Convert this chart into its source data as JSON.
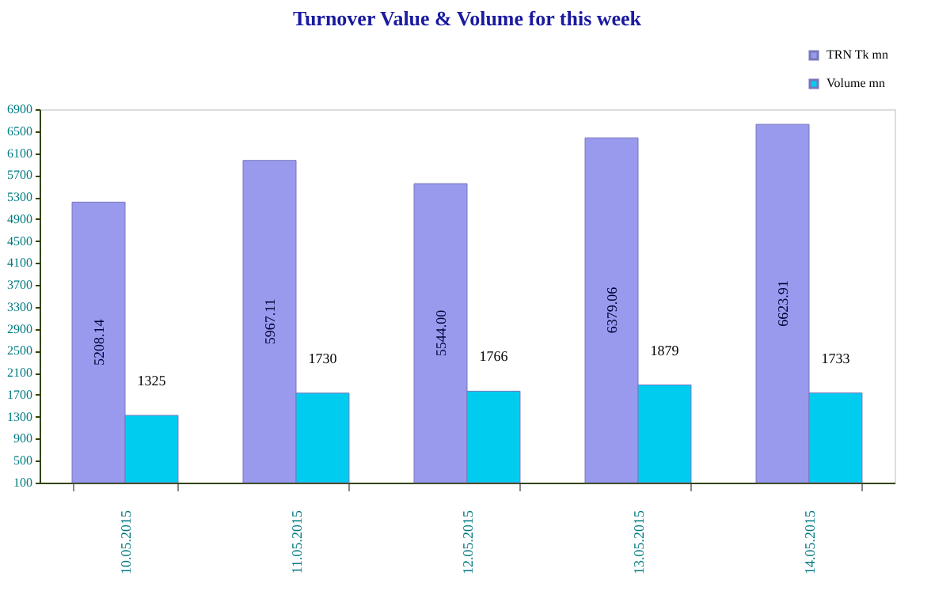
{
  "chart_data": {
    "type": "bar",
    "title": "Turnover Value & Volume for this week",
    "categories": [
      "10.05.2015",
      "11.05.2015",
      "12.05.2015",
      "13.05.2015",
      "14.05.2015"
    ],
    "series": [
      {
        "name": "TRN Tk mn",
        "color": "#9999ee",
        "values": [
          5208.14,
          5967.11,
          5544.0,
          6379.06,
          6623.91
        ],
        "value_labels": [
          "5208.14",
          "5967.11",
          "5544.00",
          "6379.06",
          "6623.91"
        ]
      },
      {
        "name": "Volume mn",
        "color": "#00ccf0",
        "values": [
          1325,
          1730,
          1766,
          1879,
          1733
        ],
        "value_labels": [
          "1325",
          "1730",
          "1766",
          "1879",
          "1733"
        ]
      }
    ],
    "ylim": [
      100,
      6900
    ],
    "yticks": [
      100,
      500,
      900,
      1300,
      1700,
      2100,
      2500,
      2900,
      3300,
      3700,
      4100,
      4500,
      4900,
      5300,
      5700,
      6100,
      6500,
      6900
    ],
    "grid": false,
    "legend": "top right"
  }
}
